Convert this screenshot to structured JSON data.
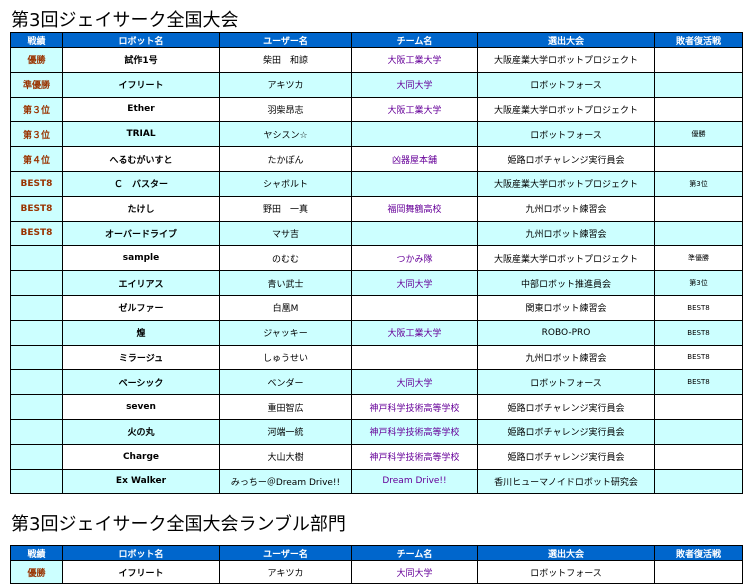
{
  "title_main": "第3回ジェイサーク全国大会",
  "title_rumble": "第3回ジェイサーク全国大会ランブル部門",
  "headers": [
    "戦績",
    "ロボット名",
    "ユーザー名",
    "チーム名",
    "選出大会",
    "敗者復活戦"
  ],
  "rows": [
    {
      "rank": "優勝",
      "robot": "試作1号",
      "user": "柴田　和諒",
      "team": "大阪工業大学",
      "event": "大阪産業大学ロボットプロジェクト",
      "revival": ""
    },
    {
      "rank": "準優勝",
      "robot": "イフリート",
      "user": "アキツカ",
      "team": "大同大学",
      "event": "ロボットフォース",
      "revival": ""
    },
    {
      "rank": "第３位",
      "robot": "Ether",
      "user": "羽柴昂志",
      "team": "大阪工業大学",
      "event": "大阪産業大学ロボットプロジェクト",
      "revival": ""
    },
    {
      "rank": "第３位",
      "robot": "TRIAL",
      "user": "ヤシスン☆",
      "team": "",
      "event": "ロボットフォース",
      "revival": "優勝"
    },
    {
      "rank": "第４位",
      "robot": "へるむがいすと",
      "user": "たかぽん",
      "team": "凶器屋本舗",
      "event": "姫路ロボチャレンジ実行員会",
      "revival": ""
    },
    {
      "rank": "BEST8",
      "robot": "Ｃ　バスター",
      "user": "シャボルト",
      "team": "",
      "event": "大阪産業大学ロボットプロジェクト",
      "revival": "第3位"
    },
    {
      "rank": "BEST8",
      "robot": "たけし",
      "user": "野田　一真",
      "team": "福岡舞鶴高校",
      "event": "九州ロボット練習会",
      "revival": ""
    },
    {
      "rank": "BEST8",
      "robot": "オーバードライブ",
      "user": "マサ吉",
      "team": "",
      "event": "九州ロボット練習会",
      "revival": ""
    },
    {
      "rank": "",
      "robot": "sample",
      "user": "のむむ",
      "team": "つかみ隊",
      "event": "大阪産業大学ロボットプロジェクト",
      "revival": "準優勝"
    },
    {
      "rank": "",
      "robot": "エイリアス",
      "user": "青い武士",
      "team": "大同大学",
      "event": "中部ロボット推進員会",
      "revival": "第3位"
    },
    {
      "rank": "",
      "robot": "ゼルファー",
      "user": "白凰M",
      "team": "",
      "event": "関東ロボット練習会",
      "revival": "BEST8"
    },
    {
      "rank": "",
      "robot": "煌",
      "user": "ジャッキー",
      "team": "大阪工業大学",
      "event": "ROBO-PRO",
      "revival": "BEST8"
    },
    {
      "rank": "",
      "robot": "ミラージュ",
      "user": "しゅうせい",
      "team": "",
      "event": "九州ロボット練習会",
      "revival": "BEST8"
    },
    {
      "rank": "",
      "robot": "ベーシック",
      "user": "ベンダー",
      "team": "大同大学",
      "event": "ロボットフォース",
      "revival": "BEST8"
    },
    {
      "rank": "",
      "robot": "seven",
      "user": "重田智広",
      "team": "神戸科学技術高等学校",
      "event": "姫路ロボチャレンジ実行員会",
      "revival": ""
    },
    {
      "rank": "",
      "robot": "火の丸",
      "user": "河端一統",
      "team": "神戸科学技術高等学校",
      "event": "姫路ロボチャレンジ実行員会",
      "revival": ""
    },
    {
      "rank": "",
      "robot": "Charge",
      "user": "大山大樹",
      "team": "神戸科学技術高等学校",
      "event": "姫路ロボチャレンジ実行員会",
      "revival": ""
    },
    {
      "rank": "",
      "robot": "Ex Walker",
      "user": "みっちー＠Dream Drive!!",
      "team": "Dream Drive!!",
      "event": "香川ヒューマノイドロボット研究会",
      "revival": ""
    }
  ],
  "rumble_rows": [
    {
      "rank": "優勝",
      "robot": "イフリート",
      "user": "アキツカ",
      "team": "大同大学",
      "event": "ロボットフォース",
      "revival": ""
    }
  ],
  "colors": {
    "header_bg": "#0066cc",
    "alt_row_bg": "#ccffff",
    "rank_text": "#993300",
    "team_text": "#660099"
  }
}
